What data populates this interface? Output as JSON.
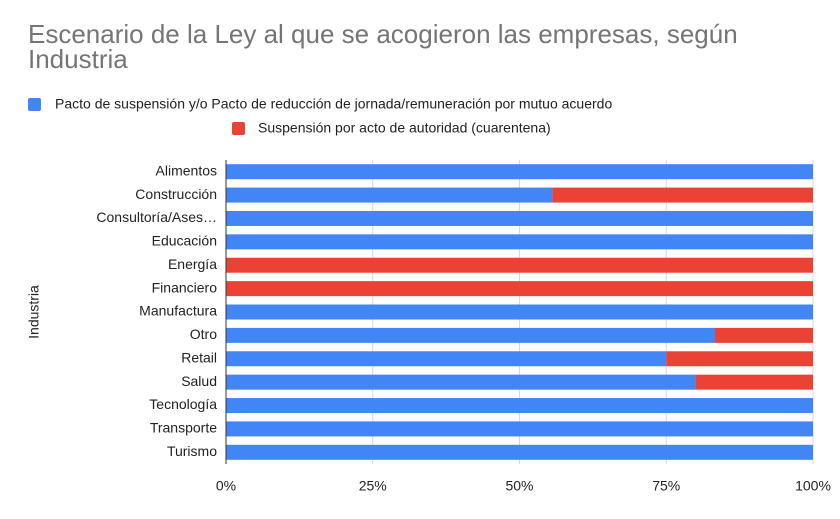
{
  "chart_data": {
    "type": "stacked-bar-horizontal",
    "title": "Escenario de la Ley al que se acogieron las empresas, según Industria",
    "y_label": "Industria",
    "categories": [
      "Alimentos",
      "Construcción",
      "Consultoría/Ases…",
      "Educación",
      "Energía",
      "Financiero",
      "Manufactura",
      "Otro",
      "Retail",
      "Salud",
      "Tecnología",
      "Transporte",
      "Turismo"
    ],
    "series": [
      {
        "name": "Pacto de suspensión y/o Pacto de reducción de jornada/remuneración por mutuo acuerdo",
        "color": "#4285f4",
        "values": [
          100,
          55.6,
          100,
          100,
          0,
          0,
          100,
          83.3,
          75,
          80,
          100,
          100,
          100
        ]
      },
      {
        "name": "Suspensión por acto de autoridad (cuarentena)",
        "color": "#ea4335",
        "values": [
          0,
          44.4,
          0,
          0,
          100,
          100,
          0,
          16.7,
          25,
          20,
          0,
          0,
          0
        ]
      }
    ],
    "xlim": [
      0,
      100
    ],
    "xticks": [
      {
        "value": 0,
        "label": "0%"
      },
      {
        "value": 25,
        "label": "25%"
      },
      {
        "value": 50,
        "label": "50%"
      },
      {
        "value": 75,
        "label": "75%"
      },
      {
        "value": 100,
        "label": "100%"
      }
    ],
    "grid": true
  }
}
